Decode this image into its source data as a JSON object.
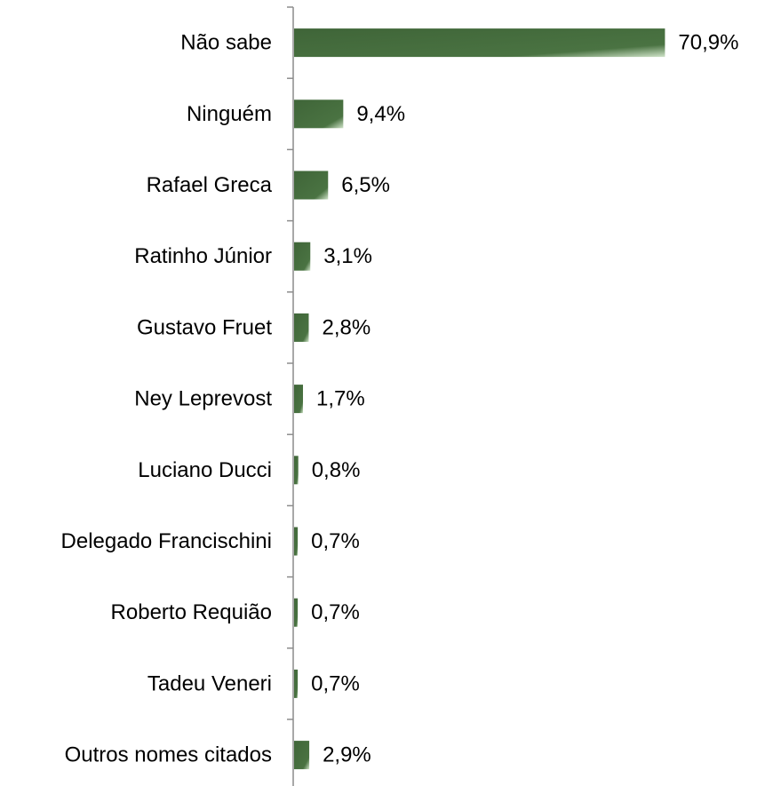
{
  "chart_data": {
    "type": "bar",
    "orientation": "horizontal",
    "categories": [
      "Não sabe",
      "Ninguém",
      "Rafael Greca",
      "Ratinho Júnior",
      "Gustavo Fruet",
      "Ney Leprevost",
      "Luciano Ducci",
      "Delegado Francischini",
      "Roberto Requião",
      "Tadeu Veneri",
      "Outros nomes citados"
    ],
    "values": [
      70.9,
      9.4,
      6.5,
      3.1,
      2.8,
      1.7,
      0.8,
      0.7,
      0.7,
      0.7,
      2.9
    ],
    "value_labels": [
      "70,9%",
      "9,4%",
      "6,5%",
      "3,1%",
      "2,8%",
      "1,7%",
      "0,8%",
      "0,7%",
      "0,7%",
      "0,7%",
      "2,9%"
    ],
    "xlim": [
      0,
      71
    ],
    "grid": false,
    "legend": "none",
    "colors": {
      "bar_dark": "#3f6538",
      "bar_light": "#cfe3c8",
      "axis": "#8c8c8c"
    }
  }
}
